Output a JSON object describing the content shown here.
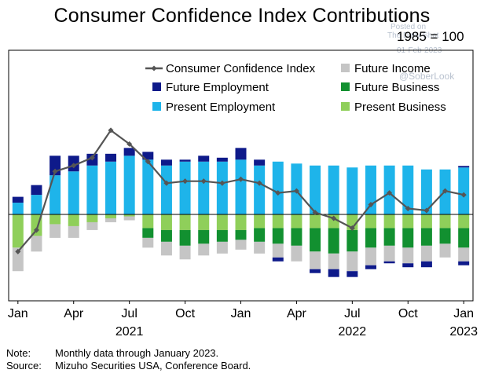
{
  "chart_data": {
    "type": "bar",
    "title": "Consumer Confidence Index Contributions",
    "subtitle": "1985 = 100",
    "categories": [
      "Jan 2021",
      "Feb 2021",
      "Mar 2021",
      "Apr 2021",
      "May 2021",
      "Jun 2021",
      "Jul 2021",
      "Aug 2021",
      "Sep 2021",
      "Oct 2021",
      "Nov 2021",
      "Dec 2021",
      "Jan 2022",
      "Feb 2022",
      "Mar 2022",
      "Apr 2022",
      "May 2022",
      "Jun 2022",
      "Jul 2022",
      "Aug 2022",
      "Sep 2022",
      "Oct 2022",
      "Nov 2022",
      "Dec 2022",
      "Jan 2023"
    ],
    "x_tick_labels": [
      {
        "index": 0,
        "month": "Jan",
        "year": ""
      },
      {
        "index": 3,
        "month": "Apr",
        "year": ""
      },
      {
        "index": 6,
        "month": "Jul",
        "year": "2021"
      },
      {
        "index": 9,
        "month": "Oct",
        "year": ""
      },
      {
        "index": 12,
        "month": "Jan",
        "year": ""
      },
      {
        "index": 15,
        "month": "Apr",
        "year": ""
      },
      {
        "index": 18,
        "month": "Jul",
        "year": "2022"
      },
      {
        "index": 21,
        "month": "Oct",
        "year": ""
      },
      {
        "index": 24,
        "month": "Jan",
        "year": "2023"
      }
    ],
    "ylim": [
      -44,
      44
    ],
    "zero_line": true,
    "grid": false,
    "legend_position": "top",
    "series": [
      {
        "name": "Present Employment",
        "kind": "bar",
        "color": "#1eb4ea",
        "values": [
          6,
          10,
          20,
          22,
          25,
          27,
          30,
          28,
          25,
          27,
          27,
          27,
          28,
          25,
          27,
          26,
          25,
          25,
          24,
          25,
          25,
          25,
          23,
          23,
          24
        ]
      },
      {
        "name": "Future Employment",
        "kind": "bar",
        "color": "#0e1a8a",
        "values": [
          3,
          5,
          10,
          8,
          6,
          4,
          4,
          4,
          3,
          1,
          3,
          2,
          6,
          3,
          0,
          0,
          0,
          0,
          0,
          0,
          0,
          0,
          0,
          0,
          0.8
        ]
      },
      {
        "name": "Present Business",
        "kind": "bar",
        "color": "#8fcf5a",
        "values": [
          -17,
          -11,
          -5,
          -6,
          -4,
          -2,
          -1,
          -7,
          -8,
          -8,
          -8,
          -8,
          -8,
          -7,
          -7,
          -7,
          -7,
          -7,
          -8,
          -7,
          -7,
          -7,
          -7,
          -7,
          -7
        ]
      },
      {
        "name": "Future Business",
        "kind": "bar",
        "color": "#129030",
        "values": [
          0,
          0,
          1,
          0,
          0,
          0,
          0,
          -5,
          -6,
          -8,
          -7,
          -6,
          -5,
          -7,
          -8,
          -9,
          -12,
          -13,
          -11,
          -10,
          -9,
          -10,
          -9,
          -8,
          -10
        ]
      },
      {
        "name": "Future Income",
        "kind": "bar",
        "color": "#c5c5c5",
        "values": [
          -12,
          -8,
          -7,
          -6,
          -4,
          -2,
          -2,
          -5,
          -7,
          -7,
          -6,
          -6,
          -5,
          -6,
          -7,
          -8,
          -9,
          -8,
          -10,
          -9,
          -8,
          -8,
          -8,
          -7,
          -7
        ]
      },
      {
        "name": "Consumer Confidence Index",
        "kind": "line",
        "color": "#555555",
        "values": [
          -19,
          -8,
          22,
          25,
          29,
          43,
          36,
          27,
          16,
          17,
          17,
          16,
          18,
          16,
          11,
          12,
          1,
          -2,
          -7,
          5,
          11,
          3,
          2,
          12,
          10
        ]
      }
    ],
    "bar_caps": [
      0,
      0,
      0,
      0,
      0,
      0,
      0,
      0,
      0,
      0,
      0,
      0,
      0,
      0,
      -2,
      0,
      -2,
      -4,
      -3,
      -2,
      -1,
      -2,
      -3,
      0,
      -2
    ]
  },
  "legend": {
    "items": [
      {
        "label": "Consumer Confidence Index",
        "type": "line",
        "color": "#555555"
      },
      {
        "label": "Future Income",
        "type": "box",
        "color": "#c5c5c5"
      },
      {
        "label": "Future Employment",
        "type": "box",
        "color": "#0e1a8a"
      },
      {
        "label": "Future Business",
        "type": "box",
        "color": "#129030"
      },
      {
        "label": "Present Employment",
        "type": "box",
        "color": "#1eb4ea"
      },
      {
        "label": "Present Business",
        "type": "box",
        "color": "#8fcf5a"
      }
    ]
  },
  "watermark": {
    "line1": "Posted on",
    "line2": "The Daily Shot",
    "line3": "01-Feb-2023",
    "line4": "@SoberLook"
  },
  "footer": {
    "note_label": "Note:",
    "note_text": "Monthly data through January 2023.",
    "source_label": "Source:",
    "source_text": "Mizuho Securities USA, Conference Board."
  }
}
